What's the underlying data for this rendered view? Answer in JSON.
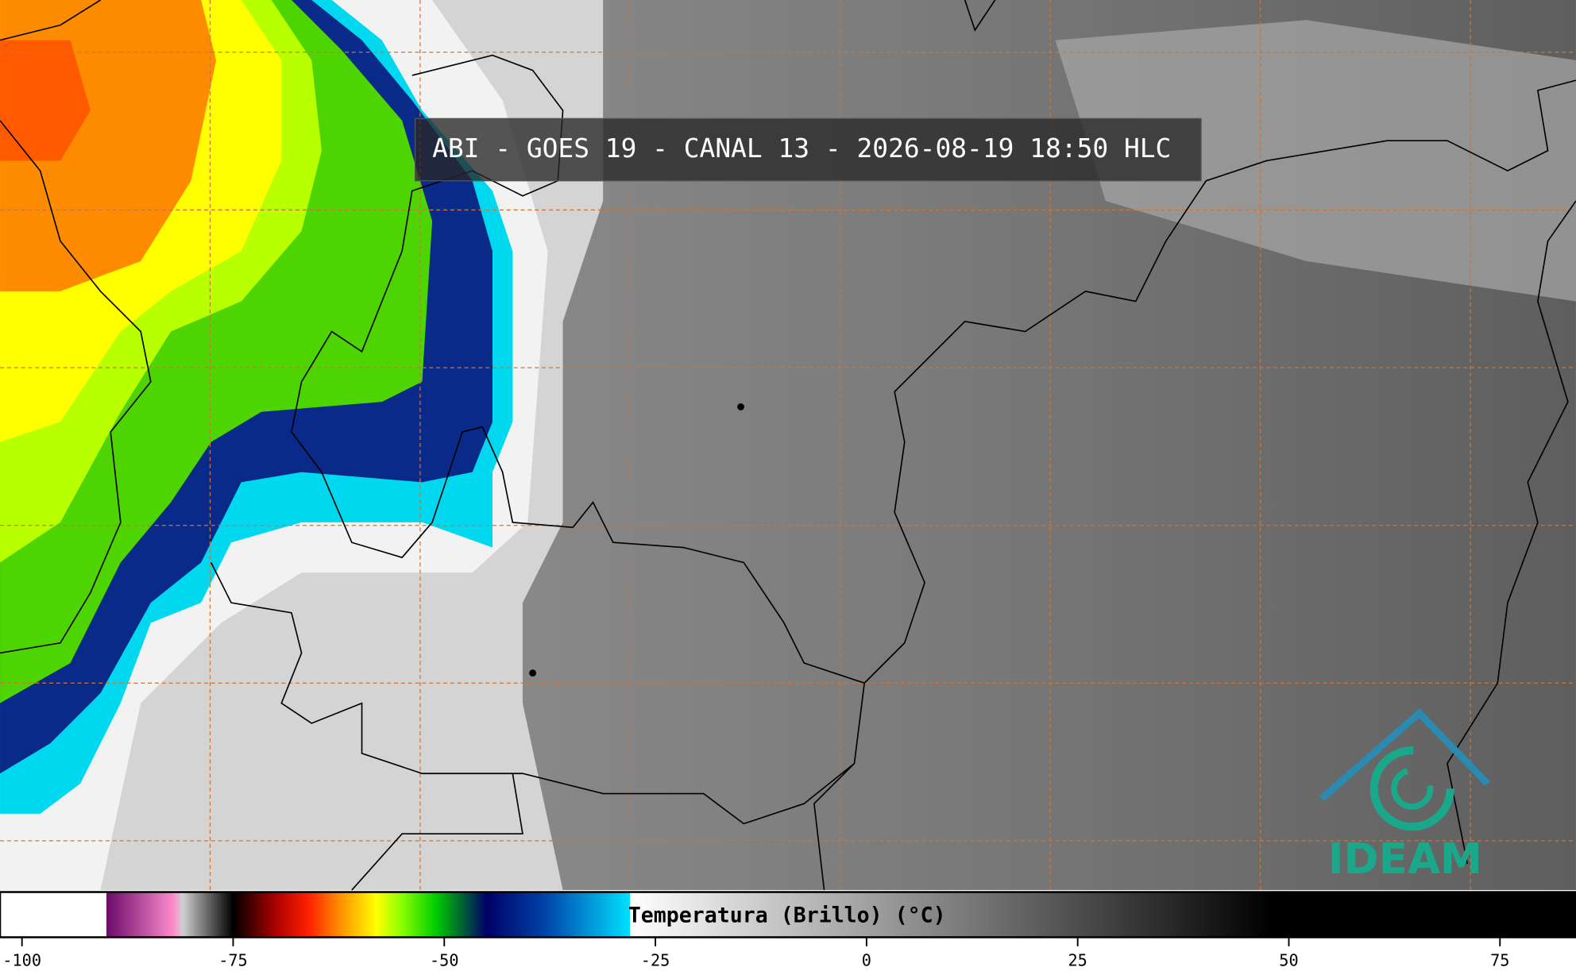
{
  "header": {
    "title": "ABI - GOES 19 - CANAL 13 - 2026-08-19 18:50 HLC"
  },
  "colorbar": {
    "label": "Temperatura (Brillo) (°C)",
    "lim": [
      -102.6,
      84
    ],
    "ticks": [
      -100,
      -75,
      -50,
      -25,
      0,
      25,
      50,
      75
    ],
    "stops": [
      {
        "value": -102.6,
        "color": "#ffffff"
      },
      {
        "value": -90,
        "color": "#ffffff"
      },
      {
        "value": -90,
        "color": "#6a0a6a"
      },
      {
        "value": -82,
        "color": "#ff8ccc"
      },
      {
        "value": -81,
        "color": "#d0d0d0"
      },
      {
        "value": -76,
        "color": "#222222"
      },
      {
        "value": -75,
        "color": "#000000"
      },
      {
        "value": -70,
        "color": "#aa0000"
      },
      {
        "value": -66,
        "color": "#ff2200"
      },
      {
        "value": -62,
        "color": "#ff9900"
      },
      {
        "value": -58,
        "color": "#ffff00"
      },
      {
        "value": -55,
        "color": "#88ff00"
      },
      {
        "value": -51,
        "color": "#00cc00"
      },
      {
        "value": -48,
        "color": "#006633"
      },
      {
        "value": -45,
        "color": "#000066"
      },
      {
        "value": -38,
        "color": "#0044aa"
      },
      {
        "value": -28,
        "color": "#00e0ff"
      },
      {
        "value": -28,
        "color": "#ffffff"
      },
      {
        "value": 48,
        "color": "#000000"
      },
      {
        "value": 84,
        "color": "#000000"
      }
    ]
  },
  "logo": {
    "text": "IDEAM"
  }
}
